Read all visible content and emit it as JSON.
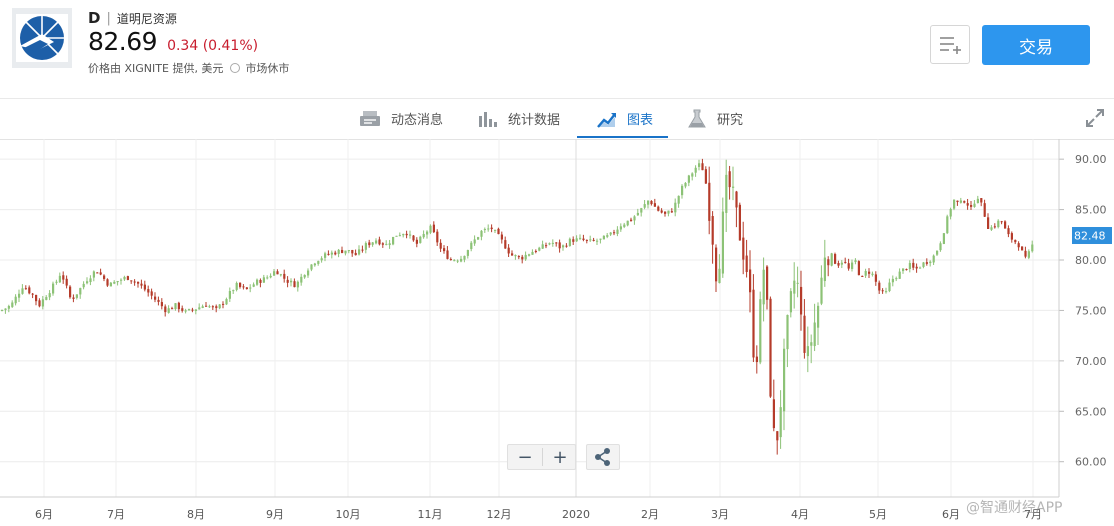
{
  "header": {
    "ticker": "D",
    "separator": "|",
    "company": "道明尼资源",
    "price": "82.69",
    "change": "0.34 (0.41%)",
    "source": "价格由 XIGNITE 提供, 美元",
    "market_status": "市场休市",
    "trade_label": "交易"
  },
  "tabs": [
    {
      "label": "动态消息",
      "icon": "news-icon"
    },
    {
      "label": "统计数据",
      "icon": "stats-icon"
    },
    {
      "label": "图表",
      "icon": "chart-icon",
      "active": true
    },
    {
      "label": "研究",
      "icon": "flask-icon"
    }
  ],
  "colors": {
    "up": "#8cc276",
    "down": "#b53b2a",
    "accent": "#2d96ee",
    "price_tag": "#2f8fdc",
    "negative": "#c81d2e"
  },
  "chart_data": {
    "type": "candlestick",
    "y_ticks": [
      "90.00",
      "85.00",
      "80.00",
      "75.00",
      "70.00",
      "65.00",
      "60.00"
    ],
    "x_ticks": [
      "6月",
      "7月",
      "8月",
      "9月",
      "10月",
      "11月",
      "12月",
      "2020",
      "2月",
      "3月",
      "4月",
      "5月",
      "6月",
      "7月"
    ],
    "last_price_label": "82.48",
    "ylim": [
      56.5,
      92
    ],
    "x_range": [
      "2019-05-14",
      "2020-07-06"
    ],
    "closes": [
      [
        0,
        75
      ],
      [
        10,
        75.5
      ],
      [
        22,
        77.5
      ],
      [
        32,
        76.5
      ],
      [
        38,
        75.5
      ],
      [
        45,
        76.5
      ],
      [
        55,
        77.8
      ],
      [
        60,
        78.8
      ],
      [
        70,
        76
      ],
      [
        78,
        77
      ],
      [
        85,
        78
      ],
      [
        95,
        79
      ],
      [
        100,
        78.5
      ],
      [
        108,
        77.5
      ],
      [
        118,
        78
      ],
      [
        126,
        78.3
      ],
      [
        135,
        77.8
      ],
      [
        145,
        77
      ],
      [
        155,
        76
      ],
      [
        165,
        75
      ],
      [
        175,
        75.5
      ],
      [
        185,
        74.8
      ],
      [
        195,
        75.2
      ],
      [
        205,
        75.6
      ],
      [
        215,
        75
      ],
      [
        225,
        76.2
      ],
      [
        235,
        77.5
      ],
      [
        245,
        77
      ],
      [
        255,
        77.8
      ],
      [
        265,
        78.2
      ],
      [
        275,
        79
      ],
      [
        285,
        78
      ],
      [
        295,
        77.5
      ],
      [
        305,
        79
      ],
      [
        315,
        80
      ],
      [
        325,
        80.5
      ],
      [
        335,
        80.8
      ],
      [
        345,
        81
      ],
      [
        355,
        80.5
      ],
      [
        365,
        81.5
      ],
      [
        375,
        82
      ],
      [
        385,
        81.5
      ],
      [
        395,
        82.5
      ],
      [
        405,
        82.8
      ],
      [
        415,
        81.5
      ],
      [
        425,
        82.8
      ],
      [
        430,
        83.2
      ],
      [
        440,
        81
      ],
      [
        450,
        80
      ],
      [
        460,
        80.2
      ],
      [
        470,
        81.5
      ],
      [
        480,
        82.8
      ],
      [
        490,
        83.2
      ],
      [
        500,
        82
      ],
      [
        510,
        80.5
      ],
      [
        520,
        80.2
      ],
      [
        530,
        80.8
      ],
      [
        540,
        81.2
      ],
      [
        550,
        81.8
      ],
      [
        560,
        81.2
      ],
      [
        570,
        82
      ],
      [
        580,
        82
      ],
      [
        590,
        81.8
      ],
      [
        600,
        82
      ],
      [
        610,
        82.5
      ],
      [
        620,
        83.5
      ],
      [
        630,
        84
      ],
      [
        640,
        85
      ],
      [
        648,
        86
      ],
      [
        656,
        85
      ],
      [
        664,
        84.5
      ],
      [
        672,
        85
      ],
      [
        680,
        87
      ],
      [
        690,
        88.5
      ],
      [
        697,
        89.5
      ],
      [
        702,
        89
      ],
      [
        706,
        87
      ],
      [
        712,
        82
      ],
      [
        716,
        78
      ],
      [
        720,
        82
      ],
      [
        726,
        88
      ],
      [
        732,
        86
      ],
      [
        740,
        82
      ],
      [
        746,
        79
      ],
      [
        750,
        75
      ],
      [
        754,
        69
      ],
      [
        758,
        73
      ],
      [
        762,
        80
      ],
      [
        766,
        75
      ],
      [
        770,
        66
      ],
      [
        774,
        61
      ],
      [
        778,
        64
      ],
      [
        782,
        69
      ],
      [
        786,
        73
      ],
      [
        790,
        76
      ],
      [
        795,
        79
      ],
      [
        800,
        74
      ],
      [
        806,
        70
      ],
      [
        812,
        73
      ],
      [
        818,
        76
      ],
      [
        824,
        81
      ],
      [
        830,
        80.5
      ],
      [
        836,
        79.5
      ],
      [
        842,
        80
      ],
      [
        848,
        79
      ],
      [
        854,
        80
      ],
      [
        860,
        78
      ],
      [
        866,
        79
      ],
      [
        872,
        78.5
      ],
      [
        878,
        77
      ],
      [
        884,
        76.5
      ],
      [
        890,
        78
      ],
      [
        896,
        78.5
      ],
      [
        902,
        79
      ],
      [
        908,
        79.5
      ],
      [
        914,
        79
      ],
      [
        920,
        79.5
      ],
      [
        928,
        80
      ],
      [
        934,
        80.5
      ],
      [
        940,
        82
      ],
      [
        946,
        84
      ],
      [
        952,
        86
      ],
      [
        958,
        85.5
      ],
      [
        964,
        86
      ],
      [
        970,
        85
      ],
      [
        976,
        86.5
      ],
      [
        982,
        85
      ],
      [
        988,
        83
      ],
      [
        994,
        83.5
      ],
      [
        1000,
        84
      ],
      [
        1006,
        82.5
      ],
      [
        1012,
        82
      ],
      [
        1018,
        81.5
      ],
      [
        1024,
        80
      ],
      [
        1030,
        81
      ],
      [
        1034,
        82.5
      ]
    ]
  }
}
